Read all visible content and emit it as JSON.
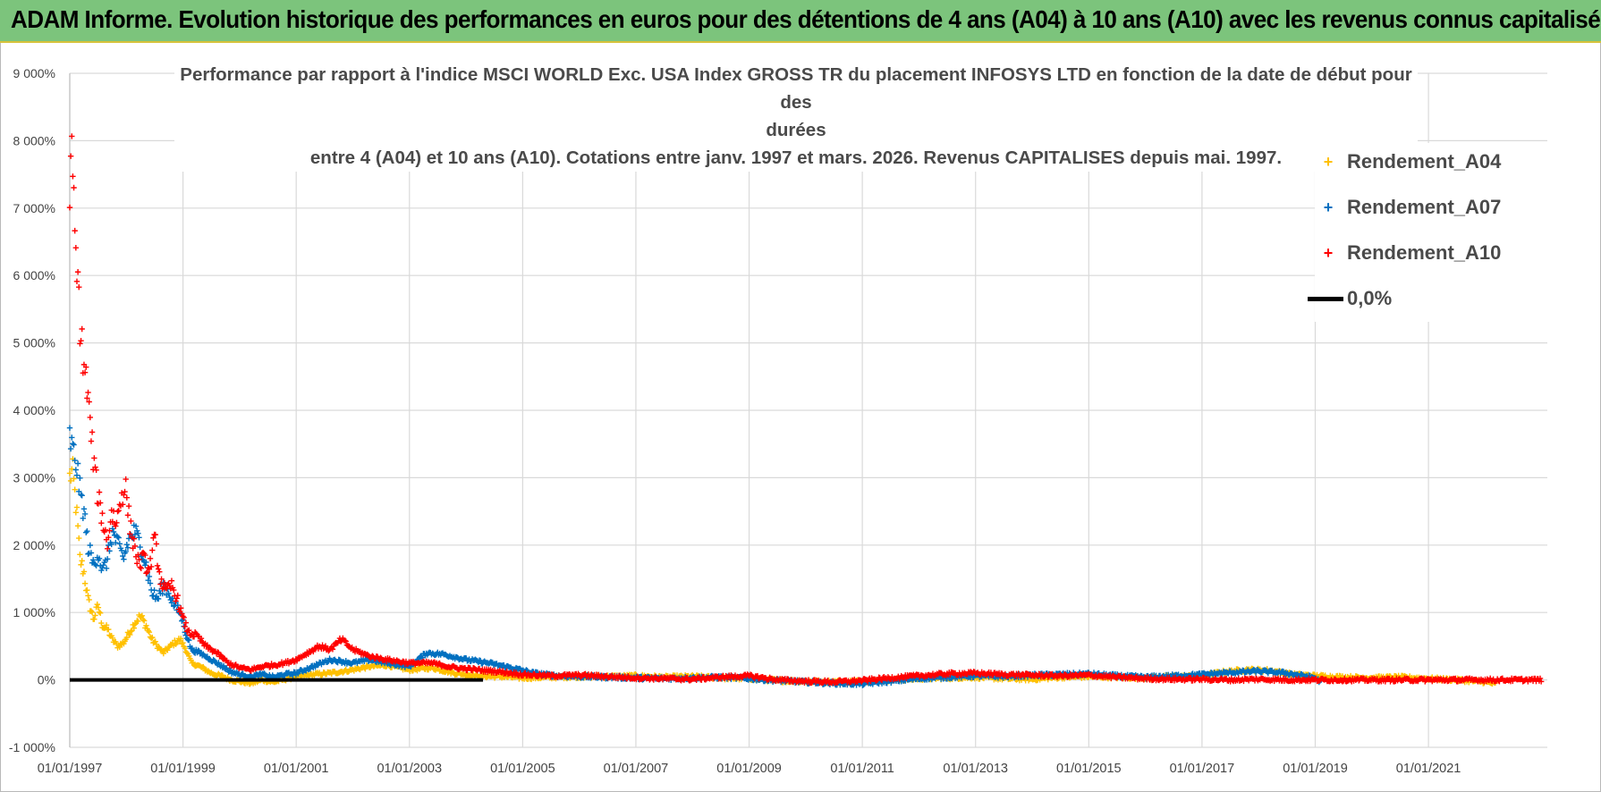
{
  "banner": {
    "title": "ADAM Informe. Evolution historique des performances en euros pour des détentions de 4 ans (A04) à 10 ans (A10) avec les revenus connus capitalisés"
  },
  "chart_data": {
    "type": "scatter",
    "title_lines": [
      "Performance par rapport à l'indice MSCI WORLD Exc. USA Index GROSS TR  du placement INFOSYS LTD en fonction de la date de début pour des",
      "durées",
      "entre 4 (A04) et 10 ans (A10).  Cotations entre janv. 1997 et mars. 2026. Revenus CAPITALISES depuis mai. 1997."
    ],
    "y_ticks": [
      "-1 000%",
      "0%",
      "1 000%",
      "2 000%",
      "3 000%",
      "4 000%",
      "5 000%",
      "6 000%",
      "7 000%",
      "8 000%",
      "9 000%"
    ],
    "ylim": [
      -1000,
      9000
    ],
    "x_ticks": [
      "01/01/1997",
      "01/01/1999",
      "01/01/2001",
      "01/01/2003",
      "01/01/2005",
      "01/01/2007",
      "01/01/2009",
      "01/01/2011",
      "01/01/2013",
      "01/01/2015",
      "01/01/2017",
      "01/01/2019",
      "01/01/2021"
    ],
    "xlim": [
      1997.0,
      2023.1
    ],
    "grid": true,
    "legend_position": "top-right",
    "series": [
      {
        "name": "Rendement_A04",
        "color": "#ffc000",
        "x_end": 2022.2,
        "points": [
          [
            1997.0,
            3000
          ],
          [
            1997.05,
            3100
          ],
          [
            1997.12,
            2500
          ],
          [
            1997.18,
            1800
          ],
          [
            1997.25,
            1600
          ],
          [
            1997.32,
            1200
          ],
          [
            1997.42,
            900
          ],
          [
            1997.5,
            1100
          ],
          [
            1997.58,
            800
          ],
          [
            1997.67,
            750
          ],
          [
            1997.75,
            600
          ],
          [
            1997.85,
            500
          ],
          [
            1997.95,
            550
          ],
          [
            1998.05,
            700
          ],
          [
            1998.15,
            850
          ],
          [
            1998.25,
            950
          ],
          [
            1998.35,
            800
          ],
          [
            1998.45,
            600
          ],
          [
            1998.55,
            500
          ],
          [
            1998.65,
            400
          ],
          [
            1998.75,
            480
          ],
          [
            1998.85,
            550
          ],
          [
            1998.95,
            600
          ],
          [
            1999.05,
            450
          ],
          [
            1999.15,
            250
          ],
          [
            1999.3,
            200
          ],
          [
            1999.5,
            100
          ],
          [
            1999.7,
            50
          ],
          [
            1999.85,
            0
          ],
          [
            2000.0,
            -20
          ],
          [
            2000.2,
            -50
          ],
          [
            2000.4,
            0
          ],
          [
            2000.6,
            -30
          ],
          [
            2000.8,
            10
          ],
          [
            2001.0,
            50
          ],
          [
            2001.3,
            80
          ],
          [
            2001.6,
            100
          ],
          [
            2002.0,
            150
          ],
          [
            2002.3,
            200
          ],
          [
            2002.6,
            220
          ],
          [
            2003.0,
            150
          ],
          [
            2003.4,
            180
          ],
          [
            2003.8,
            100
          ],
          [
            2004.2,
            60
          ],
          [
            2004.6,
            50
          ],
          [
            2005.0,
            30
          ],
          [
            2005.5,
            40
          ],
          [
            2006.0,
            50
          ],
          [
            2006.5,
            50
          ],
          [
            2007.0,
            60
          ],
          [
            2007.5,
            40
          ],
          [
            2008.0,
            50
          ],
          [
            2008.5,
            30
          ],
          [
            2009.0,
            20
          ],
          [
            2009.5,
            -10
          ],
          [
            2010.0,
            -20
          ],
          [
            2010.5,
            -30
          ],
          [
            2011.0,
            -20
          ],
          [
            2011.5,
            0
          ],
          [
            2012.0,
            20
          ],
          [
            2012.5,
            30
          ],
          [
            2013.0,
            40
          ],
          [
            2013.5,
            20
          ],
          [
            2014.0,
            10
          ],
          [
            2014.5,
            40
          ],
          [
            2015.0,
            50
          ],
          [
            2015.5,
            40
          ],
          [
            2016.0,
            30
          ],
          [
            2016.5,
            50
          ],
          [
            2017.0,
            60
          ],
          [
            2017.4,
            120
          ],
          [
            2017.8,
            150
          ],
          [
            2018.2,
            140
          ],
          [
            2018.6,
            80
          ],
          [
            2019.0,
            60
          ],
          [
            2019.5,
            40
          ],
          [
            2020.0,
            30
          ],
          [
            2020.5,
            40
          ],
          [
            2021.0,
            20
          ],
          [
            2021.5,
            0
          ],
          [
            2022.0,
            -30
          ],
          [
            2022.2,
            -60
          ]
        ]
      },
      {
        "name": "Rendement_A07",
        "color": "#0070c0",
        "x_end": 2019.1,
        "points": [
          [
            1997.0,
            3600
          ],
          [
            1997.05,
            3400
          ],
          [
            1997.12,
            3200
          ],
          [
            1997.18,
            2800
          ],
          [
            1997.25,
            2500
          ],
          [
            1997.32,
            2000
          ],
          [
            1997.42,
            1700
          ],
          [
            1997.5,
            1900
          ],
          [
            1997.58,
            1600
          ],
          [
            1997.67,
            1800
          ],
          [
            1997.75,
            2200
          ],
          [
            1997.85,
            2000
          ],
          [
            1997.95,
            1800
          ],
          [
            1998.05,
            2100
          ],
          [
            1998.15,
            2200
          ],
          [
            1998.25,
            2000
          ],
          [
            1998.35,
            1700
          ],
          [
            1998.45,
            1300
          ],
          [
            1998.55,
            1200
          ],
          [
            1998.65,
            1400
          ],
          [
            1998.75,
            1300
          ],
          [
            1998.85,
            1100
          ],
          [
            1998.95,
            1000
          ],
          [
            1999.05,
            700
          ],
          [
            1999.15,
            450
          ],
          [
            1999.3,
            400
          ],
          [
            1999.5,
            300
          ],
          [
            1999.7,
            200
          ],
          [
            1999.85,
            120
          ],
          [
            2000.0,
            80
          ],
          [
            2000.2,
            50
          ],
          [
            2000.4,
            80
          ],
          [
            2000.6,
            40
          ],
          [
            2000.8,
            80
          ],
          [
            2001.0,
            100
          ],
          [
            2001.3,
            200
          ],
          [
            2001.6,
            300
          ],
          [
            2002.0,
            250
          ],
          [
            2002.3,
            300
          ],
          [
            2002.6,
            250
          ],
          [
            2003.0,
            200
          ],
          [
            2003.3,
            400
          ],
          [
            2003.6,
            380
          ],
          [
            2004.0,
            300
          ],
          [
            2004.4,
            250
          ],
          [
            2004.8,
            180
          ],
          [
            2005.2,
            100
          ],
          [
            2005.6,
            60
          ],
          [
            2006.0,
            50
          ],
          [
            2006.5,
            40
          ],
          [
            2007.0,
            30
          ],
          [
            2007.5,
            20
          ],
          [
            2008.0,
            30
          ],
          [
            2008.5,
            40
          ],
          [
            2009.0,
            20
          ],
          [
            2009.5,
            -10
          ],
          [
            2010.0,
            -30
          ],
          [
            2010.5,
            -50
          ],
          [
            2011.0,
            -60
          ],
          [
            2011.5,
            -20
          ],
          [
            2012.0,
            20
          ],
          [
            2012.5,
            40
          ],
          [
            2013.0,
            60
          ],
          [
            2013.5,
            50
          ],
          [
            2014.0,
            70
          ],
          [
            2014.5,
            80
          ],
          [
            2015.0,
            90
          ],
          [
            2015.5,
            60
          ],
          [
            2016.0,
            40
          ],
          [
            2016.5,
            60
          ],
          [
            2017.0,
            80
          ],
          [
            2017.5,
            110
          ],
          [
            2018.0,
            130
          ],
          [
            2018.5,
            100
          ],
          [
            2019.0,
            30
          ],
          [
            2019.1,
            -40
          ]
        ]
      },
      {
        "name": "Rendement_A10",
        "color": "#ff0000",
        "x_end": 2023.0,
        "points": [
          [
            1997.0,
            7500
          ],
          [
            1997.04,
            7600
          ],
          [
            1997.08,
            6800
          ],
          [
            1997.12,
            6000
          ],
          [
            1997.16,
            5700
          ],
          [
            1997.2,
            5000
          ],
          [
            1997.24,
            4800
          ],
          [
            1997.28,
            4500
          ],
          [
            1997.32,
            4200
          ],
          [
            1997.38,
            3600
          ],
          [
            1997.44,
            3100
          ],
          [
            1997.5,
            2700
          ],
          [
            1997.58,
            2400
          ],
          [
            1997.66,
            2000
          ],
          [
            1997.74,
            2500
          ],
          [
            1997.82,
            2300
          ],
          [
            1997.9,
            2700
          ],
          [
            1997.98,
            2900
          ],
          [
            1998.06,
            2300
          ],
          [
            1998.14,
            2000
          ],
          [
            1998.22,
            1700
          ],
          [
            1998.3,
            1800
          ],
          [
            1998.4,
            1600
          ],
          [
            1998.5,
            2100
          ],
          [
            1998.6,
            1500
          ],
          [
            1998.7,
            1300
          ],
          [
            1998.8,
            1400
          ],
          [
            1998.9,
            1200
          ],
          [
            1999.0,
            900
          ],
          [
            1999.1,
            700
          ],
          [
            1999.25,
            650
          ],
          [
            1999.4,
            500
          ],
          [
            1999.6,
            400
          ],
          [
            1999.8,
            250
          ],
          [
            2000.0,
            180
          ],
          [
            2000.2,
            150
          ],
          [
            2000.4,
            200
          ],
          [
            2000.6,
            220
          ],
          [
            2000.8,
            250
          ],
          [
            2001.0,
            300
          ],
          [
            2001.2,
            400
          ],
          [
            2001.4,
            500
          ],
          [
            2001.6,
            450
          ],
          [
            2001.8,
            600
          ],
          [
            2002.0,
            450
          ],
          [
            2002.3,
            350
          ],
          [
            2002.6,
            300
          ],
          [
            2003.0,
            250
          ],
          [
            2003.4,
            250
          ],
          [
            2003.8,
            180
          ],
          [
            2004.2,
            150
          ],
          [
            2004.6,
            120
          ],
          [
            2005.0,
            80
          ],
          [
            2005.5,
            60
          ],
          [
            2006.0,
            70
          ],
          [
            2006.5,
            50
          ],
          [
            2007.0,
            30
          ],
          [
            2007.5,
            20
          ],
          [
            2008.0,
            10
          ],
          [
            2008.5,
            40
          ],
          [
            2009.0,
            60
          ],
          [
            2009.5,
            0
          ],
          [
            2010.0,
            -20
          ],
          [
            2010.5,
            -30
          ],
          [
            2011.0,
            -10
          ],
          [
            2011.5,
            30
          ],
          [
            2012.0,
            60
          ],
          [
            2012.5,
            90
          ],
          [
            2013.0,
            100
          ],
          [
            2013.5,
            80
          ],
          [
            2014.0,
            70
          ],
          [
            2014.5,
            60
          ],
          [
            2015.0,
            70
          ],
          [
            2015.5,
            40
          ],
          [
            2016.0,
            20
          ],
          [
            2016.5,
            10
          ],
          [
            2017.0,
            10
          ],
          [
            2017.5,
            0
          ],
          [
            2018.0,
            10
          ],
          [
            2018.5,
            0
          ],
          [
            2019.0,
            0
          ],
          [
            2019.5,
            0
          ],
          [
            2020.0,
            0
          ],
          [
            2020.5,
            0
          ],
          [
            2021.0,
            0
          ],
          [
            2021.5,
            0
          ],
          [
            2022.0,
            0
          ],
          [
            2022.5,
            0
          ],
          [
            2023.0,
            0
          ]
        ]
      },
      {
        "name": "0,0%",
        "color": "#000000",
        "type": "line",
        "x": [
          1997.0,
          2004.3
        ],
        "values": [
          0,
          0
        ]
      }
    ]
  }
}
